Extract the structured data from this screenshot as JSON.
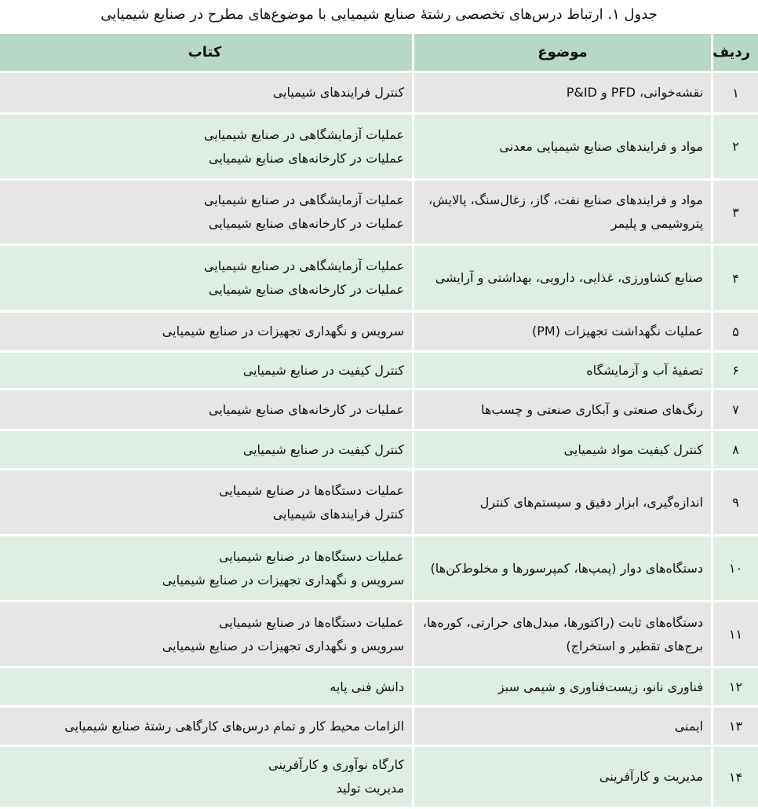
{
  "caption": "جدول ۱. ارتباط درس‌های تخصصی رشتهٔ صنایع شیمیایی با موضوع‌های مطرح در صنایع شیمیایی",
  "headers": {
    "row": "ردیف",
    "topic": "موضوع",
    "book": "کتاب"
  },
  "colors": {
    "header": "#b9d7c6",
    "row_gray": "#e6e6e6",
    "row_green": "#dfeee3"
  },
  "rows": [
    {
      "n": "۱",
      "topic": "نقشه‌خوانی، PFD و P&ID",
      "books": [
        "کنترل فرایندهای شیمیایی"
      ]
    },
    {
      "n": "۲",
      "topic": "مواد و فرایندهای صنایع شیمیایی معدنی",
      "books": [
        "عملیات آزمایشگاهی در صنایع شیمیایی",
        "عملیات در کارخانه‌های صنایع شیمیایی"
      ]
    },
    {
      "n": "۳",
      "topic": "مواد و فرایندهای صنایع نفت، گاز، زغال‌سنگ، پالایش، پتروشیمی و پلیمر",
      "books": [
        "عملیات آزمایشگاهی در صنایع شیمیایی",
        "عملیات در کارخانه‌های صنایع شیمیایی"
      ]
    },
    {
      "n": "۴",
      "topic": "صنایع کشاورزی، غذایی، دارویی، بهداشتی و آرایشی",
      "books": [
        "عملیات آزمایشگاهی در صنایع شیمیایی",
        "عملیات در کارخانه‌های صنایع شیمیایی"
      ]
    },
    {
      "n": "۵",
      "topic": "عملیات نگهداشت تجهیزات (PM)",
      "books": [
        "سرویس و نگهداری تجهیزات در صنایع شیمیایی"
      ]
    },
    {
      "n": "۶",
      "topic": "تصفیهٔ آب و آزمایشگاه",
      "books": [
        "کنترل کیفیت در صنایع شیمیایی"
      ]
    },
    {
      "n": "۷",
      "topic": "رنگ‌های صنعتی و آبکاری صنعتی و چسب‌ها",
      "books": [
        "عملیات در کارخانه‌های صنایع شیمیایی"
      ]
    },
    {
      "n": "۸",
      "topic": "کنترل کیفیت مواد شیمیایی",
      "books": [
        "کنترل کیفیت در صنایع شیمیایی"
      ]
    },
    {
      "n": "۹",
      "topic": "اندازه‌گیری، ابزار دقیق و سیستم‌های کنترل",
      "books": [
        "عملیات دستگاه‌ها در صنایع شیمیایی",
        "کنترل فرایندهای شیمیایی"
      ]
    },
    {
      "n": "۱۰",
      "topic": "دستگاه‌های دوار (پمپ‌ها، کمپرسورها و مخلوط‌کن‌ها)",
      "books": [
        "عملیات دستگاه‌ها در صنایع شیمیایی",
        "سرویس و نگهداری تجهیزات در صنایع شیمیایی"
      ]
    },
    {
      "n": "۱۱",
      "topic": "دستگاه‌های ثابت (راکتورها، مبدل‌های حرارتی، کوره‌ها، برج‌های تقطیر و استخراج)",
      "books": [
        "عملیات دستگاه‌ها در صنایع شیمیایی",
        "سرویس و نگهداری تجهیزات در صنایع شیمیایی"
      ]
    },
    {
      "n": "۱۲",
      "topic": "فناوری نانو، زیست‌فناوری و شیمی سبز",
      "books": [
        "دانش فنی پایه"
      ]
    },
    {
      "n": "۱۳",
      "topic": "ایمنی",
      "books": [
        "الزامات محیط کار و تمام درس‌های کارگاهی رشتهٔ صنایع شیمیایی"
      ]
    },
    {
      "n": "۱۴",
      "topic": "مدیریت و کارآفرینی",
      "books": [
        "کارگاه نوآوری و کارآفرینی",
        "مدیریت تولید"
      ]
    }
  ]
}
